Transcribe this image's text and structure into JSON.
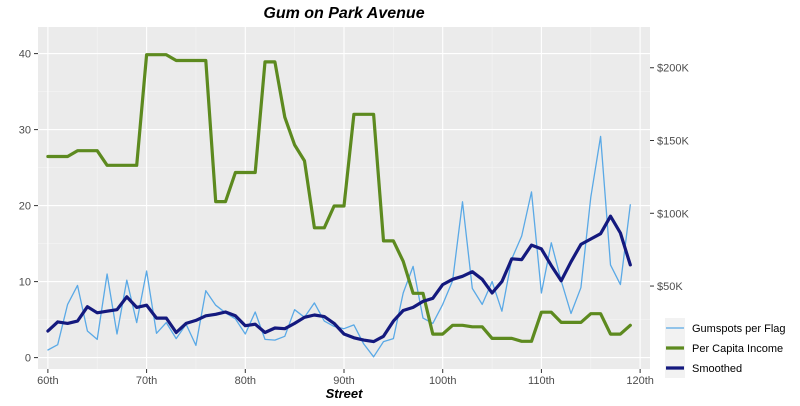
{
  "chart_data": {
    "type": "line",
    "title": "Gum on Park Avenue",
    "xlabel": "Street",
    "ylabel": "",
    "x_tick_labels": [
      "60th",
      "70th",
      "80th",
      "90th",
      "100th",
      "110th",
      "120th"
    ],
    "x_tick_values": [
      60,
      70,
      80,
      90,
      100,
      110,
      120
    ],
    "xlim": [
      59,
      121
    ],
    "y_left": {
      "ticks": [
        0,
        10,
        20,
        30,
        40
      ],
      "lim": [
        -1.5,
        43.5
      ]
    },
    "y_right": {
      "ticks": [
        50000,
        100000,
        150000,
        200000
      ],
      "tick_labels": [
        "$50K",
        "$100K",
        "$150K",
        "$200K"
      ],
      "lim": [
        -7000,
        228000
      ]
    },
    "grid": true,
    "legend_position": "bottom-right",
    "x": [
      60,
      61,
      62,
      63,
      64,
      65,
      66,
      67,
      68,
      69,
      70,
      71,
      72,
      73,
      74,
      75,
      76,
      77,
      78,
      79,
      80,
      81,
      82,
      83,
      84,
      85,
      86,
      87,
      88,
      89,
      90,
      91,
      92,
      93,
      94,
      95,
      96,
      97,
      98,
      99,
      100,
      101,
      102,
      103,
      104,
      105,
      106,
      107,
      108,
      109,
      110,
      111,
      112,
      113,
      114,
      115,
      116,
      117,
      118,
      119
    ],
    "series": [
      {
        "name": "Gumspots per Flag",
        "axis": "left",
        "color": "#5aa9e6",
        "width": 1.3,
        "values": [
          1,
          1.7,
          7,
          9.5,
          3.5,
          2.4,
          11,
          3.1,
          10.2,
          4.6,
          11.4,
          3.2,
          4.6,
          2.5,
          4.4,
          1.6,
          8.8,
          6.9,
          5.9,
          5.1,
          3.1,
          6,
          2.4,
          2.3,
          2.8,
          6.3,
          5.3,
          7.2,
          4.8,
          4.1,
          3.8,
          4.3,
          1.8,
          0.1,
          2.1,
          2.5,
          8.5,
          12,
          5.2,
          4.5,
          7,
          10.1,
          20.5,
          9.1,
          7,
          10,
          6.1,
          13,
          16,
          21.8,
          8.5,
          15.1,
          10.1,
          5.8,
          9.2,
          21.1,
          29.1,
          12.2,
          9.6,
          20.1
        ]
      },
      {
        "name": "Per Capita Income",
        "axis": "right",
        "color": "#5d8a1f",
        "width": 3.2,
        "values": [
          139000,
          139000,
          139000,
          143000,
          143000,
          143000,
          133000,
          133000,
          133000,
          133000,
          209000,
          209000,
          209000,
          205000,
          205000,
          205000,
          205000,
          108000,
          108000,
          128000,
          128000,
          128000,
          204000,
          204000,
          166000,
          147000,
          136000,
          90000,
          90000,
          105000,
          105000,
          168000,
          168000,
          168000,
          81000,
          81000,
          67000,
          45000,
          45000,
          17000,
          17000,
          23000,
          23000,
          22000,
          22000,
          14000,
          14000,
          14000,
          12000,
          12000,
          32000,
          32000,
          25000,
          25000,
          25000,
          31000,
          31000,
          17000,
          17000,
          23000
        ]
      },
      {
        "name": "Smoothed",
        "axis": "left",
        "color": "#14197e",
        "width": 3.2,
        "values": [
          3.5,
          4.7,
          4.5,
          4.8,
          6.7,
          5.9,
          6.1,
          6.3,
          8,
          6.6,
          6.9,
          5.2,
          5.2,
          3.3,
          4.5,
          4.9,
          5.5,
          5.7,
          6,
          5.5,
          4.2,
          4.4,
          3.3,
          3.9,
          3.8,
          4.5,
          5.3,
          5.6,
          5.4,
          4.5,
          3.1,
          2.6,
          2.3,
          2.1,
          2.8,
          4.8,
          6.2,
          6.6,
          7.4,
          7.8,
          9.6,
          10.3,
          10.7,
          11.3,
          10.3,
          8.5,
          10,
          13,
          12.9,
          14.8,
          14.3,
          12.1,
          10.1,
          12.6,
          14.9,
          15.6,
          16.3,
          18.6,
          16.4,
          12.2
        ]
      }
    ]
  }
}
